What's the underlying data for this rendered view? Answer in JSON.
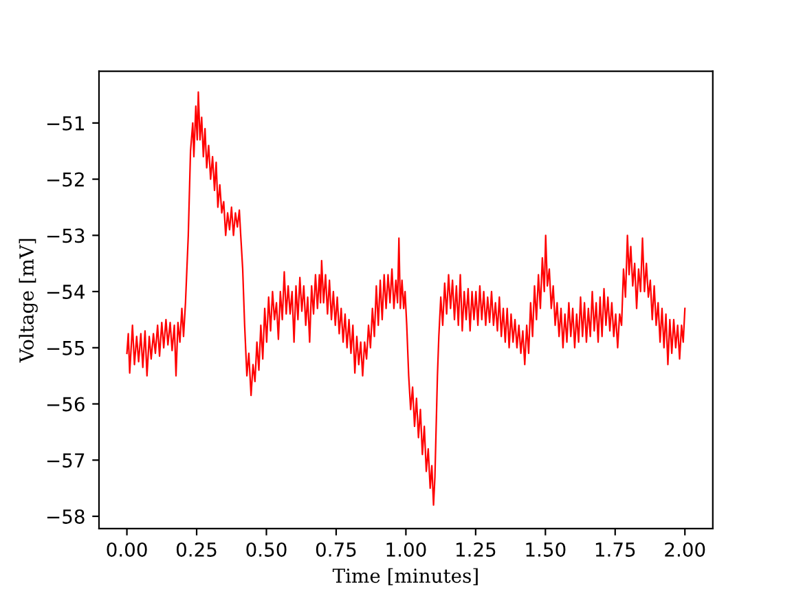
{
  "chart_data": {
    "type": "line",
    "xlabel": "Time [minutes]",
    "ylabel": "Voltage [mV]",
    "color": "#ff0000",
    "line_style": "solid",
    "xlim": [
      -0.1,
      2.1
    ],
    "ylim": [
      -58.22,
      -50.08
    ],
    "xticks": [
      {
        "value": 0,
        "label": "0.00"
      },
      {
        "value": 0.25,
        "label": "0.25"
      },
      {
        "value": 0.5,
        "label": "0.50"
      },
      {
        "value": 0.75,
        "label": "0.75"
      },
      {
        "value": 1,
        "label": "1.00"
      },
      {
        "value": 1.25,
        "label": "1.25"
      },
      {
        "value": 1.5,
        "label": "1.50"
      },
      {
        "value": 1.75,
        "label": "1.75"
      },
      {
        "value": 2,
        "label": "2.00"
      }
    ],
    "yticks": [
      {
        "value": -58,
        "label": "−58"
      },
      {
        "value": -57,
        "label": "−57"
      },
      {
        "value": -56,
        "label": "−56"
      },
      {
        "value": -55,
        "label": "−55"
      },
      {
        "value": -54,
        "label": "−54"
      },
      {
        "value": -53,
        "label": "−53"
      },
      {
        "value": -52,
        "label": "−52"
      },
      {
        "value": -51,
        "label": "−51"
      }
    ],
    "x": [
      0.0,
      0.005,
      0.01,
      0.02,
      0.027,
      0.035,
      0.042,
      0.05,
      0.057,
      0.065,
      0.072,
      0.08,
      0.087,
      0.095,
      0.102,
      0.11,
      0.117,
      0.125,
      0.132,
      0.14,
      0.147,
      0.155,
      0.162,
      0.17,
      0.176,
      0.183,
      0.19,
      0.197,
      0.203,
      0.21,
      0.22,
      0.228,
      0.236,
      0.24,
      0.247,
      0.252,
      0.256,
      0.262,
      0.268,
      0.274,
      0.28,
      0.286,
      0.293,
      0.3,
      0.307,
      0.314,
      0.32,
      0.326,
      0.333,
      0.34,
      0.347,
      0.354,
      0.361,
      0.368,
      0.375,
      0.382,
      0.389,
      0.396,
      0.403,
      0.408,
      0.415,
      0.422,
      0.43,
      0.437,
      0.445,
      0.452,
      0.459,
      0.466,
      0.473,
      0.48,
      0.487,
      0.494,
      0.501,
      0.508,
      0.515,
      0.522,
      0.529,
      0.536,
      0.543,
      0.55,
      0.557,
      0.564,
      0.571,
      0.578,
      0.585,
      0.592,
      0.599,
      0.606,
      0.613,
      0.62,
      0.627,
      0.634,
      0.641,
      0.648,
      0.655,
      0.662,
      0.669,
      0.676,
      0.683,
      0.69,
      0.694,
      0.698,
      0.705,
      0.712,
      0.719,
      0.726,
      0.733,
      0.74,
      0.747,
      0.754,
      0.761,
      0.768,
      0.775,
      0.782,
      0.789,
      0.796,
      0.803,
      0.81,
      0.817,
      0.824,
      0.831,
      0.838,
      0.845,
      0.852,
      0.859,
      0.866,
      0.873,
      0.88,
      0.887,
      0.894,
      0.901,
      0.908,
      0.915,
      0.922,
      0.929,
      0.936,
      0.943,
      0.95,
      0.957,
      0.964,
      0.97,
      0.975,
      0.98,
      0.986,
      0.992,
      0.997,
      1.003,
      1.01,
      1.017,
      1.024,
      1.031,
      1.038,
      1.045,
      1.052,
      1.059,
      1.066,
      1.073,
      1.08,
      1.087,
      1.093,
      1.099,
      1.104,
      1.108,
      1.113,
      1.118,
      1.125,
      1.132,
      1.139,
      1.146,
      1.153,
      1.16,
      1.167,
      1.174,
      1.181,
      1.188,
      1.195,
      1.202,
      1.209,
      1.216,
      1.223,
      1.23,
      1.237,
      1.244,
      1.251,
      1.258,
      1.265,
      1.272,
      1.279,
      1.286,
      1.293,
      1.3,
      1.307,
      1.314,
      1.321,
      1.328,
      1.335,
      1.342,
      1.349,
      1.356,
      1.363,
      1.37,
      1.377,
      1.384,
      1.391,
      1.398,
      1.405,
      1.412,
      1.419,
      1.426,
      1.433,
      1.44,
      1.447,
      1.454,
      1.461,
      1.468,
      1.475,
      1.482,
      1.489,
      1.496,
      1.501,
      1.507,
      1.514,
      1.521,
      1.528,
      1.535,
      1.542,
      1.549,
      1.556,
      1.563,
      1.57,
      1.577,
      1.584,
      1.591,
      1.598,
      1.605,
      1.612,
      1.619,
      1.626,
      1.633,
      1.64,
      1.647,
      1.654,
      1.661,
      1.668,
      1.675,
      1.682,
      1.689,
      1.696,
      1.703,
      1.71,
      1.717,
      1.724,
      1.731,
      1.738,
      1.745,
      1.752,
      1.759,
      1.766,
      1.773,
      1.78,
      1.787,
      1.794,
      1.8,
      1.806,
      1.813,
      1.82,
      1.827,
      1.834,
      1.841,
      1.848,
      1.855,
      1.862,
      1.869,
      1.876,
      1.883,
      1.89,
      1.897,
      1.904,
      1.911,
      1.918,
      1.925,
      1.932,
      1.939,
      1.946,
      1.953,
      1.96,
      1.967,
      1.974,
      1.981,
      1.988,
      1.994,
      2.0
    ],
    "values": [
      -55.1,
      -54.75,
      -55.45,
      -54.6,
      -55.3,
      -54.8,
      -55.25,
      -54.75,
      -55.35,
      -54.7,
      -55.5,
      -54.8,
      -55.2,
      -54.75,
      -55.1,
      -54.6,
      -55.15,
      -54.55,
      -55.0,
      -54.5,
      -54.95,
      -54.55,
      -55.05,
      -54.6,
      -55.5,
      -54.55,
      -54.9,
      -54.3,
      -54.8,
      -54.2,
      -53.0,
      -51.5,
      -51.0,
      -51.6,
      -50.7,
      -51.3,
      -50.45,
      -51.3,
      -50.9,
      -51.6,
      -51.1,
      -51.8,
      -51.4,
      -52.0,
      -51.6,
      -52.2,
      -51.7,
      -52.5,
      -52.1,
      -52.6,
      -52.4,
      -53.0,
      -52.6,
      -52.9,
      -52.5,
      -53.0,
      -52.6,
      -52.85,
      -52.55,
      -53.0,
      -53.6,
      -54.6,
      -55.5,
      -55.1,
      -55.85,
      -55.3,
      -55.6,
      -54.9,
      -55.4,
      -54.6,
      -55.2,
      -54.3,
      -54.9,
      -54.1,
      -54.7,
      -54.0,
      -54.5,
      -54.2,
      -54.85,
      -54.0,
      -54.5,
      -53.65,
      -54.4,
      -53.9,
      -54.4,
      -54.0,
      -54.9,
      -53.9,
      -54.5,
      -53.75,
      -54.35,
      -53.9,
      -54.6,
      -54.1,
      -54.9,
      -53.9,
      -54.4,
      -53.7,
      -54.3,
      -53.7,
      -54.2,
      -53.45,
      -54.2,
      -53.7,
      -54.4,
      -53.8,
      -54.5,
      -54.0,
      -54.6,
      -54.1,
      -54.75,
      -54.3,
      -54.9,
      -54.4,
      -55.0,
      -54.5,
      -55.1,
      -54.6,
      -55.45,
      -54.8,
      -55.3,
      -54.9,
      -55.5,
      -54.9,
      -55.2,
      -54.6,
      -55.0,
      -54.3,
      -54.8,
      -53.9,
      -54.6,
      -53.8,
      -54.5,
      -53.7,
      -54.3,
      -53.7,
      -54.2,
      -53.6,
      -54.3,
      -53.8,
      -54.2,
      -53.05,
      -54.3,
      -53.8,
      -54.3,
      -54.0,
      -54.6,
      -55.5,
      -56.1,
      -55.7,
      -56.4,
      -55.9,
      -56.6,
      -56.1,
      -56.9,
      -56.4,
      -57.2,
      -56.8,
      -57.5,
      -57.1,
      -57.8,
      -57.3,
      -56.5,
      -55.5,
      -54.8,
      -54.1,
      -54.6,
      -53.85,
      -54.4,
      -53.7,
      -54.3,
      -53.8,
      -54.5,
      -53.9,
      -54.6,
      -53.7,
      -54.7,
      -54.0,
      -54.5,
      -53.95,
      -54.7,
      -54.0,
      -54.5,
      -54.0,
      -54.6,
      -53.9,
      -54.5,
      -54.0,
      -54.6,
      -54.1,
      -54.55,
      -54.0,
      -54.6,
      -54.2,
      -54.7,
      -54.1,
      -54.8,
      -54.3,
      -54.9,
      -54.3,
      -55.0,
      -54.4,
      -54.9,
      -54.5,
      -55.0,
      -54.6,
      -55.1,
      -54.7,
      -55.3,
      -54.6,
      -55.1,
      -54.2,
      -54.8,
      -53.9,
      -54.5,
      -53.7,
      -54.3,
      -53.4,
      -54.0,
      -53.0,
      -53.9,
      -53.6,
      -54.3,
      -53.9,
      -54.6,
      -54.2,
      -54.8,
      -54.3,
      -55.0,
      -54.4,
      -54.9,
      -54.2,
      -54.8,
      -54.3,
      -55.0,
      -54.4,
      -54.9,
      -54.1,
      -54.8,
      -54.2,
      -54.9,
      -54.3,
      -54.8,
      -54.0,
      -54.7,
      -54.2,
      -54.9,
      -54.1,
      -54.8,
      -53.95,
      -54.6,
      -54.1,
      -54.7,
      -54.2,
      -54.8,
      -54.4,
      -55.0,
      -54.4,
      -54.6,
      -53.6,
      -54.1,
      -53.0,
      -53.7,
      -53.2,
      -53.9,
      -53.5,
      -54.3,
      -53.6,
      -54.0,
      -53.05,
      -54.0,
      -53.5,
      -54.1,
      -53.8,
      -54.5,
      -53.9,
      -54.6,
      -54.2,
      -54.9,
      -54.3,
      -55.0,
      -54.4,
      -55.3,
      -54.5,
      -55.1,
      -54.5,
      -55.0,
      -54.6,
      -55.2,
      -54.6,
      -54.9,
      -54.3
    ]
  }
}
